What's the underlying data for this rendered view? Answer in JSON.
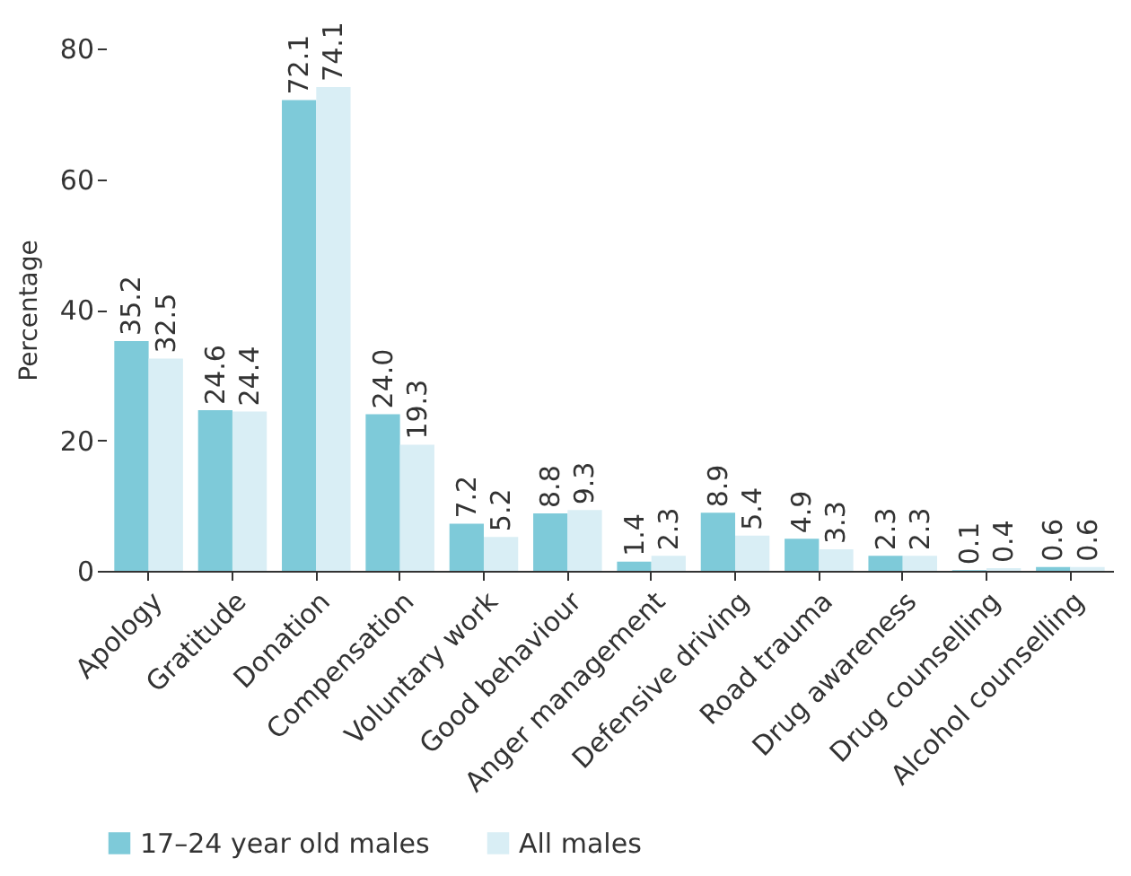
{
  "chart_data": {
    "type": "bar",
    "ylabel": "Percentage",
    "categories": [
      "Apology",
      "Gratitude",
      "Donation",
      "Compensation",
      "Voluntary work",
      "Good behaviour",
      "Anger management",
      "Defensive driving",
      "Road trauma",
      "Drug awareness",
      "Drug counselling",
      "Alcohol counselling"
    ],
    "series": [
      {
        "name": "17–24 year old males",
        "color": "#7ecad9",
        "values": [
          35.2,
          24.6,
          72.1,
          24.0,
          7.2,
          8.8,
          1.4,
          8.9,
          4.9,
          2.3,
          0.1,
          0.6
        ],
        "value_labels": [
          "35.2",
          "24.6",
          "72.1",
          "24.0",
          "7.2",
          "8.8",
          "1.4",
          "8.9",
          "4.9",
          "2.3",
          "0.1",
          "0.6"
        ]
      },
      {
        "name": "All males",
        "color": "#d9eef5",
        "values": [
          32.5,
          24.4,
          74.1,
          19.3,
          5.2,
          9.3,
          2.3,
          5.4,
          3.3,
          2.3,
          0.4,
          0.6
        ],
        "value_labels": [
          "32.5",
          "24.4",
          "74.1",
          "19.3",
          "5.2",
          "9.3",
          "2.3",
          "5.4",
          "3.3",
          "2.3",
          "0.4",
          "0.6"
        ]
      }
    ],
    "ylim": [
      0,
      80
    ],
    "yticks": [
      0,
      20,
      40,
      60,
      80
    ],
    "grid": false,
    "legend": "bottom"
  }
}
